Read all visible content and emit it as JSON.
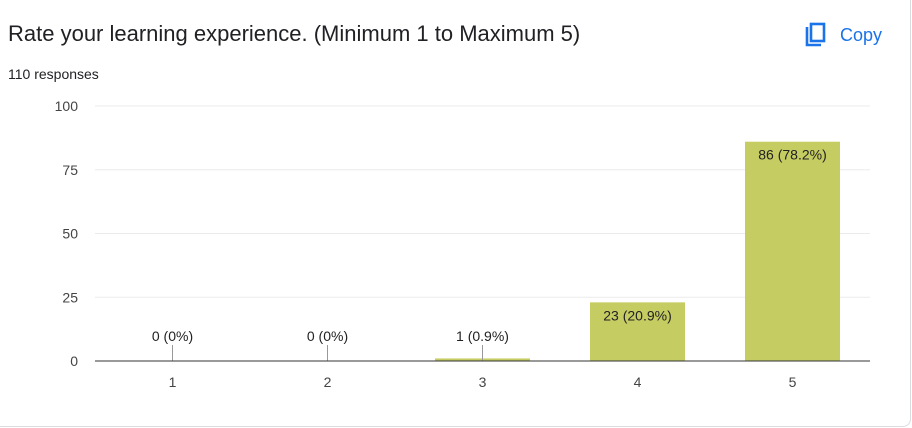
{
  "header": {
    "title": "Rate your learning experience. (Minimum 1 to Maximum 5)",
    "responses": "110 responses",
    "copy_label": "Copy",
    "copy_icon": "copy-icon"
  },
  "colors": {
    "bar": "#c5cc62",
    "grid": "#ebebeb",
    "axis": "#333333",
    "accent": "#1a73e8"
  },
  "chart_data": {
    "type": "bar",
    "categories": [
      "1",
      "2",
      "3",
      "4",
      "5"
    ],
    "values": [
      0,
      0,
      1,
      23,
      86
    ],
    "data_labels": [
      "0 (0%)",
      "0 (0%)",
      "1 (0.9%)",
      "23 (20.9%)",
      "86 (78.2%)"
    ],
    "ylim": [
      0,
      100
    ],
    "yticks": [
      0,
      25,
      50,
      75,
      100
    ],
    "grid": true,
    "legend": "none"
  }
}
